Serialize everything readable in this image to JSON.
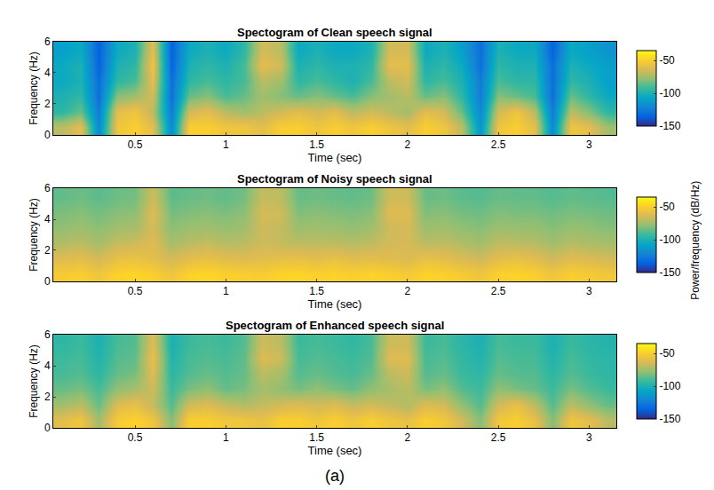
{
  "chart_data": [
    {
      "type": "heatmap",
      "title": "Spectogram of Clean speech signal",
      "x_label": "Time (sec)",
      "y_label": "Frequency (Hz)",
      "x": [
        0.1,
        0.2,
        0.3,
        0.4,
        0.5,
        0.6,
        0.7,
        0.8,
        0.9,
        1.0,
        1.1,
        1.2,
        1.3,
        1.4,
        1.5,
        1.6,
        1.7,
        1.8,
        1.9,
        2.0,
        2.1,
        2.2,
        2.3,
        2.4,
        2.5,
        2.6,
        2.7,
        2.8,
        2.9,
        3.0,
        3.1
      ],
      "y": [
        0.5,
        1.5,
        2.5,
        3.5,
        4.5,
        5.5
      ],
      "z": [
        [
          -70,
          -60,
          -120,
          -55,
          -50,
          -60,
          -120,
          -50,
          -50,
          -55,
          -55,
          -60,
          -50,
          -50,
          -55,
          -50,
          -55,
          -50,
          -55,
          -60,
          -50,
          -55,
          -70,
          -115,
          -55,
          -50,
          -60,
          -120,
          -55,
          -60,
          -75
        ],
        [
          -95,
          -85,
          -125,
          -60,
          -55,
          -70,
          -125,
          -65,
          -60,
          -70,
          -75,
          -70,
          -65,
          -60,
          -65,
          -60,
          -70,
          -65,
          -70,
          -75,
          -60,
          -65,
          -85,
          -120,
          -65,
          -55,
          -70,
          -125,
          -70,
          -80,
          -95
        ],
        [
          -100,
          -95,
          -130,
          -80,
          -75,
          -65,
          -130,
          -85,
          -80,
          -90,
          -85,
          -75,
          -80,
          -85,
          -80,
          -85,
          -90,
          -80,
          -75,
          -70,
          -85,
          -80,
          -95,
          -125,
          -80,
          -85,
          -90,
          -130,
          -85,
          -95,
          -105
        ],
        [
          -105,
          -100,
          -130,
          -95,
          -90,
          -60,
          -130,
          -95,
          -90,
          -95,
          -90,
          -70,
          -75,
          -95,
          -90,
          -95,
          -100,
          -90,
          -70,
          -65,
          -95,
          -90,
          -100,
          -125,
          -90,
          -95,
          -95,
          -130,
          -95,
          -100,
          -110
        ],
        [
          -105,
          -100,
          -135,
          -100,
          -95,
          -55,
          -135,
          -100,
          -95,
          -100,
          -90,
          -60,
          -65,
          -100,
          -95,
          -100,
          -100,
          -95,
          -60,
          -60,
          -100,
          -95,
          -105,
          -130,
          -95,
          -100,
          -100,
          -130,
          -100,
          -105,
          -110
        ],
        [
          -110,
          -105,
          -135,
          -105,
          -100,
          -60,
          -135,
          -105,
          -100,
          -105,
          -95,
          -65,
          -70,
          -105,
          -100,
          -105,
          -105,
          -100,
          -65,
          -65,
          -105,
          -100,
          -110,
          -130,
          -100,
          -105,
          -105,
          -135,
          -105,
          -110,
          -115
        ]
      ],
      "xlim": [
        0.05,
        3.15
      ],
      "ylim": [
        0,
        6
      ],
      "xticks": [
        0.5,
        1,
        1.5,
        2,
        2.5,
        3
      ],
      "yticks": [
        0,
        2,
        4,
        6
      ],
      "zlim": [
        -150,
        -35
      ],
      "zticks": [
        -150,
        -100,
        -50
      ]
    },
    {
      "type": "heatmap",
      "title": "Spectogram of Noisy speech signal",
      "x_label": "Time (sec)",
      "y_label": "Frequency (Hz)",
      "x": [
        0.1,
        0.2,
        0.3,
        0.4,
        0.5,
        0.6,
        0.7,
        0.8,
        0.9,
        1.0,
        1.1,
        1.2,
        1.3,
        1.4,
        1.5,
        1.6,
        1.7,
        1.8,
        1.9,
        2.0,
        2.1,
        2.2,
        2.3,
        2.4,
        2.5,
        2.6,
        2.7,
        2.8,
        2.9,
        3.0,
        3.1
      ],
      "y": [
        0.5,
        1.5,
        2.5,
        3.5,
        4.5,
        5.5
      ],
      "z": [
        [
          -52,
          -50,
          -55,
          -48,
          -47,
          -50,
          -55,
          -48,
          -47,
          -49,
          -50,
          -51,
          -48,
          -47,
          -49,
          -48,
          -50,
          -48,
          -50,
          -52,
          -48,
          -49,
          -52,
          -55,
          -49,
          -48,
          -50,
          -55,
          -50,
          -52,
          -54
        ],
        [
          -62,
          -60,
          -65,
          -58,
          -57,
          -60,
          -65,
          -60,
          -58,
          -61,
          -62,
          -60,
          -59,
          -58,
          -60,
          -58,
          -61,
          -60,
          -61,
          -63,
          -58,
          -60,
          -63,
          -66,
          -60,
          -58,
          -61,
          -66,
          -61,
          -63,
          -65
        ],
        [
          -72,
          -70,
          -74,
          -68,
          -66,
          -62,
          -74,
          -70,
          -68,
          -71,
          -70,
          -66,
          -68,
          -70,
          -69,
          -70,
          -71,
          -69,
          -65,
          -64,
          -70,
          -69,
          -72,
          -75,
          -69,
          -70,
          -71,
          -75,
          -71,
          -73,
          -74
        ],
        [
          -78,
          -76,
          -79,
          -75,
          -74,
          -64,
          -79,
          -76,
          -75,
          -77,
          -75,
          -66,
          -68,
          -76,
          -75,
          -76,
          -78,
          -75,
          -66,
          -64,
          -76,
          -75,
          -78,
          -80,
          -76,
          -77,
          -77,
          -80,
          -77,
          -78,
          -80
        ],
        [
          -82,
          -80,
          -83,
          -80,
          -79,
          -62,
          -83,
          -81,
          -80,
          -82,
          -79,
          -64,
          -66,
          -81,
          -80,
          -81,
          -82,
          -80,
          -62,
          -62,
          -81,
          -80,
          -83,
          -84,
          -81,
          -82,
          -82,
          -84,
          -82,
          -83,
          -84
        ],
        [
          -86,
          -84,
          -87,
          -84,
          -83,
          -66,
          -87,
          -85,
          -84,
          -86,
          -83,
          -68,
          -70,
          -85,
          -84,
          -85,
          -86,
          -84,
          -66,
          -66,
          -85,
          -84,
          -87,
          -88,
          -85,
          -86,
          -86,
          -88,
          -86,
          -87,
          -88
        ]
      ],
      "xlim": [
        0.05,
        3.15
      ],
      "ylim": [
        0,
        6
      ],
      "xticks": [
        0.5,
        1,
        1.5,
        2,
        2.5,
        3
      ],
      "yticks": [
        0,
        2,
        4,
        6
      ],
      "zlim": [
        -150,
        -35
      ],
      "zticks": [
        -150,
        -100,
        -50
      ]
    },
    {
      "type": "heatmap",
      "title": "Spectogram of Enhanced speech signal",
      "x_label": "Time (sec)",
      "y_label": "Frequency (Hz)",
      "x": [
        0.1,
        0.2,
        0.3,
        0.4,
        0.5,
        0.6,
        0.7,
        0.8,
        0.9,
        1.0,
        1.1,
        1.2,
        1.3,
        1.4,
        1.5,
        1.6,
        1.7,
        1.8,
        1.9,
        2.0,
        2.1,
        2.2,
        2.3,
        2.4,
        2.5,
        2.6,
        2.7,
        2.8,
        2.9,
        3.0,
        3.1
      ],
      "y": [
        0.5,
        1.5,
        2.5,
        3.5,
        4.5,
        5.5
      ],
      "z": [
        [
          -60,
          -55,
          -75,
          -52,
          -48,
          -55,
          -80,
          -50,
          -50,
          -54,
          -55,
          -58,
          -50,
          -50,
          -54,
          -50,
          -55,
          -50,
          -55,
          -58,
          -50,
          -54,
          -65,
          -80,
          -54,
          -50,
          -58,
          -80,
          -55,
          -60,
          -70
        ],
        [
          -75,
          -70,
          -85,
          -62,
          -58,
          -68,
          -88,
          -65,
          -62,
          -68,
          -72,
          -68,
          -65,
          -62,
          -65,
          -62,
          -68,
          -65,
          -68,
          -72,
          -62,
          -65,
          -78,
          -88,
          -65,
          -58,
          -70,
          -88,
          -70,
          -78,
          -85
        ],
        [
          -85,
          -82,
          -90,
          -78,
          -74,
          -66,
          -92,
          -82,
          -78,
          -85,
          -82,
          -74,
          -78,
          -82,
          -78,
          -82,
          -85,
          -78,
          -74,
          -70,
          -82,
          -78,
          -88,
          -92,
          -78,
          -82,
          -85,
          -92,
          -82,
          -88,
          -92
        ],
        [
          -90,
          -88,
          -95,
          -85,
          -82,
          -62,
          -95,
          -88,
          -85,
          -88,
          -85,
          -70,
          -74,
          -88,
          -85,
          -88,
          -90,
          -85,
          -70,
          -66,
          -88,
          -85,
          -92,
          -95,
          -85,
          -88,
          -88,
          -95,
          -88,
          -92,
          -95
        ],
        [
          -92,
          -90,
          -98,
          -88,
          -86,
          -58,
          -98,
          -90,
          -88,
          -90,
          -86,
          -62,
          -66,
          -90,
          -88,
          -90,
          -92,
          -88,
          -62,
          -62,
          -90,
          -88,
          -94,
          -98,
          -88,
          -90,
          -90,
          -98,
          -90,
          -94,
          -96
        ],
        [
          -95,
          -92,
          -100,
          -90,
          -88,
          -62,
          -100,
          -92,
          -90,
          -92,
          -88,
          -66,
          -70,
          -92,
          -90,
          -92,
          -94,
          -90,
          -66,
          -66,
          -92,
          -90,
          -96,
          -100,
          -90,
          -92,
          -92,
          -100,
          -92,
          -96,
          -98
        ]
      ],
      "xlim": [
        0.05,
        3.15
      ],
      "ylim": [
        0,
        6
      ],
      "xticks": [
        0.5,
        1,
        1.5,
        2,
        2.5,
        3
      ],
      "yticks": [
        0,
        2,
        4,
        6
      ],
      "zlim": [
        -150,
        -35
      ],
      "zticks": [
        -150,
        -100,
        -50
      ]
    }
  ],
  "colorbar_title": "Power/frequency (dB/Hz)",
  "caption": "(a)"
}
